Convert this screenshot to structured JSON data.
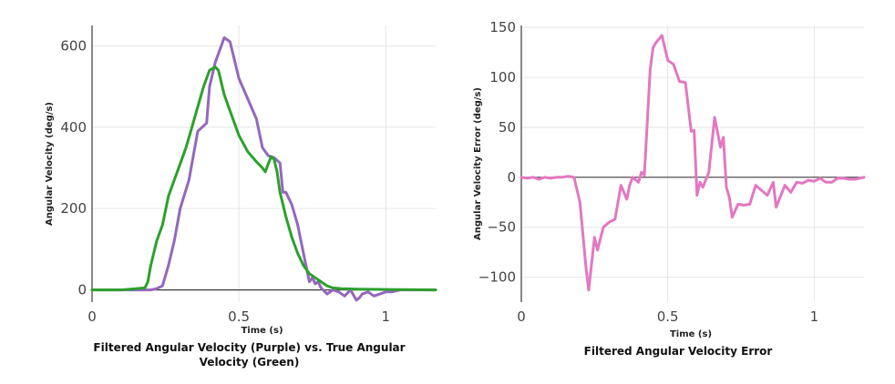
{
  "chart_data": [
    {
      "type": "line",
      "title_lines": [
        "Filtered Angular Velocity (Purple) vs. True Angular",
        "Velocity (Green)"
      ],
      "xlabel": "Time (s)",
      "ylabel": "Angular Velocity (deg/s)",
      "xlim": [
        0,
        1.17
      ],
      "ylim": [
        -30,
        650
      ],
      "xticks": [
        0,
        0.5,
        1
      ],
      "xtick_labels": [
        "0",
        "0.5",
        "1"
      ],
      "yticks": [
        0,
        200,
        400,
        600
      ],
      "ytick_labels": [
        "0",
        "200",
        "400",
        "600"
      ],
      "grid": true,
      "series": [
        {
          "color": "#9467bd",
          "x": [
            0,
            0.1,
            0.18,
            0.2,
            0.22,
            0.24,
            0.26,
            0.28,
            0.3,
            0.33,
            0.36,
            0.39,
            0.4,
            0.42,
            0.44,
            0.45,
            0.47,
            0.5,
            0.53,
            0.56,
            0.58,
            0.6,
            0.62,
            0.64,
            0.65,
            0.66,
            0.68,
            0.7,
            0.72,
            0.74,
            0.75,
            0.76,
            0.77,
            0.78,
            0.8,
            0.82,
            0.84,
            0.86,
            0.88,
            0.9,
            0.91,
            0.92,
            0.94,
            0.96,
            0.98,
            1.0,
            1.02,
            1.05,
            1.1,
            1.17
          ],
          "y": [
            0,
            0,
            0,
            0,
            3,
            10,
            60,
            120,
            200,
            270,
            390,
            410,
            500,
            560,
            600,
            620,
            610,
            520,
            470,
            420,
            350,
            330,
            325,
            312,
            240,
            240,
            210,
            160,
            90,
            20,
            30,
            15,
            20,
            5,
            -10,
            0,
            -5,
            -15,
            0,
            -25,
            -20,
            -10,
            -5,
            -15,
            -10,
            -5,
            -5,
            0,
            0,
            0
          ]
        },
        {
          "color": "#2ca02c",
          "x": [
            0,
            0.1,
            0.18,
            0.19,
            0.2,
            0.22,
            0.24,
            0.26,
            0.28,
            0.3,
            0.32,
            0.34,
            0.36,
            0.38,
            0.4,
            0.42,
            0.43,
            0.45,
            0.47,
            0.5,
            0.53,
            0.56,
            0.58,
            0.59,
            0.6,
            0.61,
            0.62,
            0.63,
            0.64,
            0.66,
            0.68,
            0.7,
            0.72,
            0.74,
            0.76,
            0.78,
            0.8,
            0.82,
            0.85,
            0.9,
            1.0,
            1.17
          ],
          "y": [
            0,
            0,
            5,
            20,
            60,
            120,
            160,
            230,
            270,
            310,
            350,
            400,
            450,
            500,
            540,
            548,
            540,
            480,
            440,
            380,
            340,
            315,
            300,
            290,
            310,
            328,
            320,
            290,
            240,
            180,
            130,
            90,
            60,
            40,
            30,
            20,
            10,
            5,
            3,
            2,
            1,
            0
          ]
        }
      ]
    },
    {
      "type": "line",
      "title_lines": [
        "Filtered Angular Velocity Error"
      ],
      "xlabel": "Time (s)",
      "ylabel": "Angular Velocity Error (deg/s)",
      "xlim": [
        0,
        1.17
      ],
      "ylim": [
        -125,
        152
      ],
      "xticks": [
        0,
        0.5,
        1
      ],
      "xtick_labels": [
        "0",
        "0.5",
        "1"
      ],
      "yticks": [
        -100,
        -50,
        0,
        50,
        100,
        150
      ],
      "ytick_labels": [
        "−100",
        "−50",
        "0",
        "50",
        "100",
        "150"
      ],
      "grid": true,
      "series": [
        {
          "color": "#e377c2",
          "x": [
            0,
            0.02,
            0.04,
            0.06,
            0.08,
            0.1,
            0.12,
            0.14,
            0.16,
            0.18,
            0.2,
            0.22,
            0.23,
            0.25,
            0.26,
            0.28,
            0.3,
            0.32,
            0.34,
            0.36,
            0.37,
            0.38,
            0.4,
            0.41,
            0.42,
            0.44,
            0.45,
            0.46,
            0.48,
            0.5,
            0.52,
            0.54,
            0.56,
            0.58,
            0.59,
            0.6,
            0.61,
            0.62,
            0.64,
            0.66,
            0.67,
            0.68,
            0.69,
            0.7,
            0.71,
            0.72,
            0.74,
            0.76,
            0.78,
            0.8,
            0.82,
            0.84,
            0.86,
            0.87,
            0.9,
            0.92,
            0.94,
            0.96,
            0.98,
            1.0,
            1.02,
            1.04,
            1.06,
            1.08,
            1.1,
            1.12,
            1.14,
            1.17
          ],
          "y": [
            0,
            -1,
            0,
            -2,
            0,
            -1,
            0,
            0,
            1,
            0,
            -25,
            -88,
            -113,
            -60,
            -73,
            -50,
            -45,
            -42,
            -8,
            -22,
            -8,
            0,
            -5,
            5,
            2,
            108,
            130,
            135,
            142,
            117,
            113,
            96,
            95,
            46,
            47,
            -18,
            -5,
            -10,
            5,
            60,
            45,
            30,
            40,
            -10,
            -20,
            -40,
            -27,
            -28,
            -27,
            -8,
            -13,
            -18,
            -5,
            -30,
            -8,
            -15,
            -5,
            -6,
            -3,
            -4,
            -1,
            -5,
            -5,
            -1,
            -1,
            -2,
            -2,
            0
          ]
        }
      ]
    }
  ]
}
